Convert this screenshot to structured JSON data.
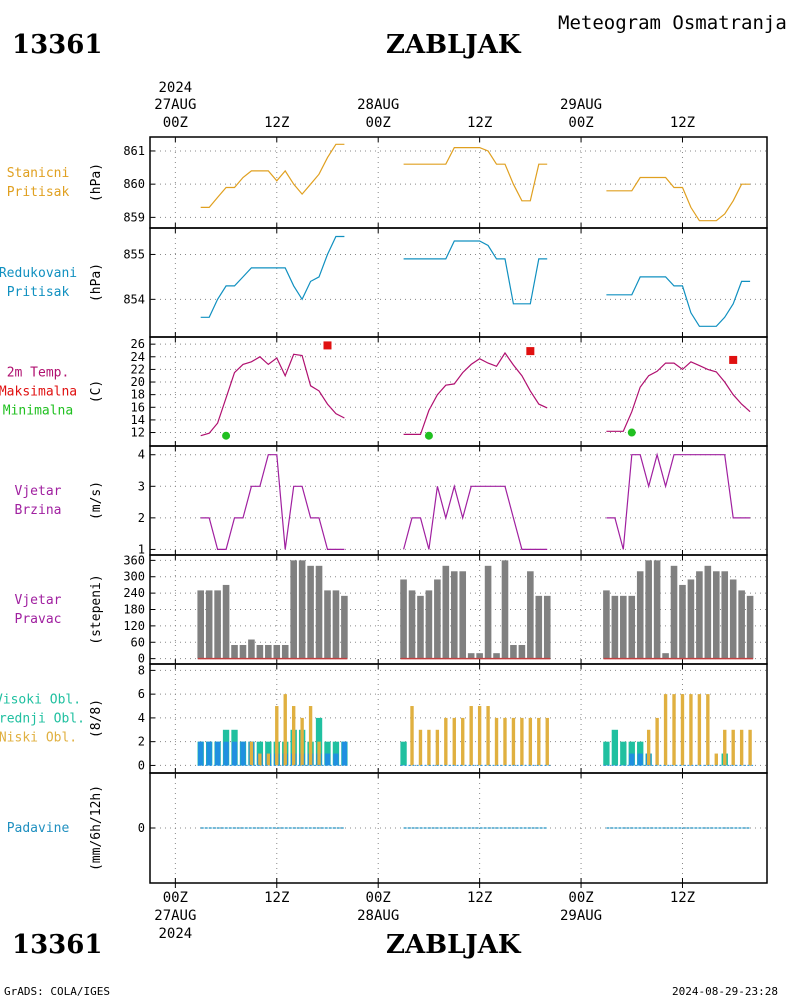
{
  "header": {
    "station_id": "13361",
    "station_name": "ZABLJAK",
    "subtitle": "Meteogram Osmatranja",
    "source_note": "GrADS: COLA/IGES",
    "timestamp": "2024-08-29-23:28"
  },
  "time_axis": {
    "top_labels": [
      {
        "line1": "2024",
        "line2": "27AUG",
        "line3": "00Z",
        "t": 0
      },
      {
        "line1": "",
        "line2": "",
        "line3": "12Z",
        "t": 12
      },
      {
        "line1": "",
        "line2": "28AUG",
        "line3": "00Z",
        "t": 24
      },
      {
        "line1": "",
        "line2": "",
        "line3": "12Z",
        "t": 36
      },
      {
        "line1": "",
        "line2": "29AUG",
        "line3": "00Z",
        "t": 48
      },
      {
        "line1": "",
        "line2": "",
        "line3": "12Z",
        "t": 60
      }
    ],
    "bottom_labels": [
      {
        "line1": "00Z",
        "line2": "27AUG",
        "line3": "2024",
        "t": 0
      },
      {
        "line1": "12Z",
        "line2": "",
        "line3": "",
        "t": 12
      },
      {
        "line1": "00Z",
        "line2": "28AUG",
        "line3": "",
        "t": 24
      },
      {
        "line1": "12Z",
        "line2": "",
        "line3": "",
        "t": 36
      },
      {
        "line1": "00Z",
        "line2": "29AUG",
        "line3": "",
        "t": 48
      },
      {
        "line1": "12Z",
        "line2": "",
        "line3": "",
        "t": 60
      }
    ],
    "range_hours": [
      -3,
      70
    ]
  },
  "colors": {
    "station_pressure": "#e0a020",
    "reduced_pressure": "#1090c0",
    "temperature": "#b01070",
    "tmax": "#e01010",
    "tmin": "#20c020",
    "wind": "#a020a0",
    "wind_dir_bar": "#808080",
    "wind_dir_base": "#c04040",
    "cloud_high": "#20c0a0",
    "cloud_mid": "#2090e0",
    "cloud_low": "#e0b040",
    "precip": "#2090c0",
    "grid": "#888888",
    "frame": "#000000"
  },
  "chart_data": [
    {
      "type": "line",
      "panel": "station_pressure",
      "label_lines": [
        "Stanicni",
        "Pritisak"
      ],
      "unit": "(hPa)",
      "ylim": [
        858.8,
        861.3
      ],
      "yticks": [
        859,
        860,
        861
      ],
      "series": [
        {
          "x": [
            3,
            4,
            5,
            6,
            7,
            8,
            9,
            10,
            11,
            12,
            13,
            14,
            15,
            16,
            17,
            18,
            19,
            20
          ],
          "y": [
            859.3,
            859.3,
            859.6,
            859.9,
            859.9,
            860.2,
            860.4,
            860.4,
            860.4,
            860.1,
            860.4,
            860.0,
            859.7,
            860.0,
            860.3,
            860.8,
            861.2,
            861.2
          ]
        },
        {
          "x": [
            27,
            28,
            29,
            30,
            31,
            32,
            33,
            34,
            35,
            36,
            37,
            38,
            39,
            40,
            41,
            42,
            43,
            44
          ],
          "y": [
            860.6,
            860.6,
            860.6,
            860.6,
            860.6,
            860.6,
            861.1,
            861.1,
            861.1,
            861.1,
            861.0,
            860.6,
            860.6,
            860.0,
            859.5,
            859.5,
            860.6,
            860.6
          ]
        },
        {
          "x": [
            51,
            52,
            53,
            54,
            55,
            56,
            57,
            58,
            59,
            60,
            61,
            62,
            63,
            64,
            65,
            66,
            67,
            68
          ],
          "y": [
            859.8,
            859.8,
            859.8,
            859.8,
            860.2,
            860.2,
            860.2,
            860.2,
            859.9,
            859.9,
            859.3,
            858.9,
            858.9,
            858.9,
            859.1,
            859.5,
            860.0,
            860.0
          ]
        }
      ]
    },
    {
      "type": "line",
      "panel": "reduced_pressure",
      "label_lines": [
        "Redukovani",
        "Pritisak"
      ],
      "unit": "(hPa)",
      "ylim": [
        853.25,
        855.5
      ],
      "yticks": [
        854,
        855
      ],
      "series": [
        {
          "x": [
            3,
            4,
            5,
            6,
            7,
            8,
            9,
            10,
            11,
            12,
            13,
            14,
            15,
            16,
            17,
            18,
            19,
            20
          ],
          "y": [
            853.6,
            853.6,
            854.0,
            854.3,
            854.3,
            854.5,
            854.7,
            854.7,
            854.7,
            854.7,
            854.7,
            854.3,
            854.0,
            854.4,
            854.5,
            855.0,
            855.4,
            855.4
          ]
        },
        {
          "x": [
            27,
            28,
            29,
            30,
            31,
            32,
            33,
            34,
            35,
            36,
            37,
            38,
            39,
            40,
            41,
            42,
            43,
            44
          ],
          "y": [
            854.9,
            854.9,
            854.9,
            854.9,
            854.9,
            854.9,
            855.3,
            855.3,
            855.3,
            855.3,
            855.2,
            854.9,
            854.9,
            853.9,
            853.9,
            853.9,
            854.9,
            854.9
          ]
        },
        {
          "x": [
            51,
            52,
            53,
            54,
            55,
            56,
            57,
            58,
            59,
            60,
            61,
            62,
            63,
            64,
            65,
            66,
            67,
            68
          ],
          "y": [
            854.1,
            854.1,
            854.1,
            854.1,
            854.5,
            854.5,
            854.5,
            854.5,
            854.3,
            854.3,
            853.7,
            853.4,
            853.4,
            853.4,
            853.6,
            853.9,
            854.4,
            854.4
          ]
        }
      ]
    },
    {
      "type": "line",
      "panel": "temperature",
      "label_lines": [
        "2m Temp.",
        "Maksimalna",
        "Minimalna"
      ],
      "unit": "(C)",
      "ylim": [
        10.5,
        26.5
      ],
      "yticks": [
        12,
        14,
        16,
        18,
        20,
        22,
        24,
        26
      ],
      "series": [
        {
          "x": [
            3,
            4,
            5,
            6,
            7,
            8,
            9,
            10,
            11,
            12,
            13,
            14,
            15,
            16,
            17,
            18,
            19,
            20
          ],
          "y": [
            11.5,
            11.9,
            13.5,
            17.5,
            21.5,
            22.8,
            23.2,
            24.0,
            22.8,
            23.8,
            21.0,
            24.4,
            24.2,
            19.4,
            18.6,
            16.5,
            15.0,
            14.3
          ]
        },
        {
          "x": [
            27,
            28,
            29,
            30,
            31,
            32,
            33,
            34,
            35,
            36,
            37,
            38,
            39,
            40,
            41,
            42,
            43,
            44
          ],
          "y": [
            11.7,
            11.7,
            11.7,
            15.5,
            18.0,
            19.5,
            19.7,
            21.5,
            22.8,
            23.7,
            23.0,
            22.5,
            24.6,
            22.7,
            21.0,
            18.6,
            16.5,
            15.9
          ]
        },
        {
          "x": [
            51,
            52,
            53,
            54,
            55,
            56,
            57,
            58,
            59,
            60,
            61,
            62,
            63,
            64,
            65,
            66,
            67,
            68
          ],
          "y": [
            12.2,
            12.2,
            12.2,
            15.3,
            19.2,
            21.0,
            21.7,
            23.0,
            23.0,
            22.0,
            23.2,
            22.6,
            22.0,
            21.6,
            20.0,
            18.0,
            16.5,
            15.3
          ]
        }
      ],
      "tmax_points": [
        {
          "x": 18,
          "y": 25.8
        },
        {
          "x": 42,
          "y": 24.9
        },
        {
          "x": 66,
          "y": 23.5
        }
      ],
      "tmin_points": [
        {
          "x": 6,
          "y": 11.5
        },
        {
          "x": 30,
          "y": 11.5
        },
        {
          "x": 54,
          "y": 12.0
        }
      ]
    },
    {
      "type": "line",
      "panel": "wind_speed",
      "label_lines": [
        "Vjetar",
        "Brzina"
      ],
      "unit": "(m/s)",
      "ylim": [
        0.95,
        4.15
      ],
      "yticks": [
        1,
        2,
        3,
        4
      ],
      "series": [
        {
          "x": [
            3,
            4,
            5,
            6,
            7,
            8,
            9,
            10,
            11,
            12,
            13,
            14,
            15,
            16,
            17,
            18,
            19,
            20
          ],
          "y": [
            2,
            2,
            1,
            1,
            2,
            2,
            3,
            3,
            4,
            4,
            1,
            3,
            3,
            2,
            2,
            1,
            1,
            1
          ]
        },
        {
          "x": [
            27,
            28,
            29,
            30,
            31,
            32,
            33,
            34,
            35,
            36,
            37,
            38,
            39,
            40,
            41,
            42,
            43,
            44
          ],
          "y": [
            1,
            2,
            2,
            1,
            3,
            2,
            3,
            2,
            3,
            3,
            3,
            3,
            3,
            2,
            1,
            1,
            1,
            1
          ]
        },
        {
          "x": [
            51,
            52,
            53,
            54,
            55,
            56,
            57,
            58,
            59,
            60,
            61,
            62,
            63,
            64,
            65,
            66,
            67,
            68
          ],
          "y": [
            2,
            2,
            1,
            4,
            4,
            3,
            4,
            3,
            4,
            4,
            4,
            4,
            4,
            4,
            4,
            2,
            2,
            2
          ]
        }
      ]
    },
    {
      "type": "bar",
      "panel": "wind_direction",
      "label_lines": [
        "Vjetar",
        "Pravac"
      ],
      "unit": "(stepeni)",
      "ylim": [
        -5,
        365
      ],
      "yticks": [
        0,
        60,
        120,
        180,
        240,
        300,
        360
      ],
      "x": [
        3,
        4,
        5,
        6,
        7,
        8,
        9,
        10,
        11,
        12,
        13,
        14,
        15,
        16,
        17,
        18,
        19,
        20,
        27,
        28,
        29,
        30,
        31,
        32,
        33,
        34,
        35,
        36,
        37,
        38,
        39,
        40,
        41,
        42,
        43,
        44,
        51,
        52,
        53,
        54,
        55,
        56,
        57,
        58,
        59,
        60,
        61,
        62,
        63,
        64,
        65,
        66,
        67,
        68
      ],
      "values": [
        250,
        250,
        250,
        270,
        50,
        50,
        70,
        50,
        50,
        50,
        50,
        360,
        360,
        340,
        340,
        250,
        250,
        230,
        290,
        250,
        230,
        250,
        290,
        340,
        320,
        320,
        20,
        20,
        340,
        20,
        360,
        50,
        50,
        320,
        230,
        230,
        250,
        230,
        230,
        230,
        320,
        360,
        360,
        20,
        340,
        270,
        290,
        320,
        340,
        320,
        320,
        290,
        250,
        230
      ]
    },
    {
      "type": "bar",
      "panel": "clouds",
      "label_lines": [
        "Visoki Obl.",
        "Srednji Obl.",
        "Niski Obl."
      ],
      "unit": "(8/8)",
      "ylim": [
        -0.3,
        8.2
      ],
      "yticks": [
        0,
        2,
        4,
        6,
        8
      ],
      "x": [
        3,
        4,
        5,
        6,
        7,
        8,
        9,
        10,
        11,
        12,
        13,
        14,
        15,
        16,
        17,
        18,
        19,
        20,
        27,
        28,
        29,
        30,
        31,
        32,
        33,
        34,
        35,
        36,
        37,
        38,
        39,
        40,
        41,
        42,
        43,
        44,
        51,
        52,
        53,
        54,
        55,
        56,
        57,
        58,
        59,
        60,
        61,
        62,
        63,
        64,
        65,
        66,
        67,
        68
      ],
      "series": [
        {
          "name": "Visoki Obl.",
          "values": [
            2,
            2,
            2,
            3,
            3,
            2,
            2,
            2,
            2,
            2,
            2,
            3,
            3,
            2,
            4,
            2,
            2,
            2,
            2,
            0,
            0,
            0,
            0,
            0,
            0,
            0,
            0,
            0,
            0,
            0,
            0,
            0,
            0,
            0,
            0,
            0,
            2,
            3,
            2,
            2,
            2,
            1,
            0,
            0,
            0,
            0,
            0,
            0,
            0,
            0,
            1,
            0,
            0,
            0
          ]
        },
        {
          "name": "Srednji Obl.",
          "values": [
            2,
            2,
            2,
            2,
            2,
            2,
            2,
            1,
            1,
            1,
            1,
            1,
            1,
            1,
            1,
            1,
            1,
            2,
            0,
            0,
            0,
            0,
            0,
            0,
            0,
            0,
            0,
            0,
            0,
            0,
            0,
            0,
            0,
            0,
            0,
            0,
            0,
            0,
            0,
            1,
            1,
            1,
            0,
            0,
            0,
            0,
            0,
            0,
            0,
            0,
            0,
            0,
            0,
            0
          ]
        },
        {
          "name": "Niski Obl.",
          "values": [
            0,
            0,
            0,
            0,
            0,
            0,
            2,
            1,
            1,
            5,
            6,
            5,
            4,
            5,
            2,
            0,
            0,
            0,
            0,
            5,
            3,
            3,
            3,
            4,
            4,
            4,
            5,
            5,
            5,
            4,
            4,
            4,
            4,
            4,
            4,
            4,
            0,
            0,
            0,
            0,
            0,
            3,
            4,
            6,
            6,
            6,
            6,
            6,
            6,
            1,
            3,
            3,
            3,
            3
          ]
        }
      ]
    },
    {
      "type": "line",
      "panel": "precipitation",
      "label_lines": [
        "Padavine"
      ],
      "unit": "(mm/6h/12h)",
      "ylim": [
        -5,
        5
      ],
      "yticks": [
        0
      ],
      "series": [
        {
          "x": [
            3,
            20
          ],
          "y": [
            0,
            0
          ]
        },
        {
          "x": [
            27,
            44
          ],
          "y": [
            0,
            0
          ]
        },
        {
          "x": [
            51,
            68
          ],
          "y": [
            0,
            0
          ]
        }
      ]
    }
  ]
}
